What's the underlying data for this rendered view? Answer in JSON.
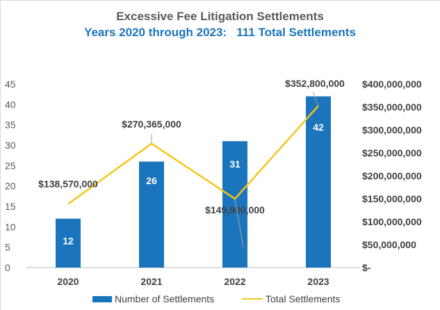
{
  "chart_data": {
    "type": "bar",
    "title": "Excessive Fee Litigation Settlements",
    "subtitle": "Years 2020 through 2023:   111 Total Settlements",
    "categories": [
      "2020",
      "2021",
      "2022",
      "2023"
    ],
    "series": [
      {
        "name": "Number of Settlements",
        "type": "bar",
        "axis": "left",
        "color": "#1b75bc",
        "values": [
          12,
          26,
          31,
          42
        ],
        "labels": [
          "12",
          "26",
          "31",
          "42"
        ]
      },
      {
        "name": "Total Settlements",
        "type": "line",
        "axis": "right",
        "color": "#f5c518",
        "values": [
          138570000,
          270365000,
          149900000,
          352800000
        ],
        "labels": [
          "$138,570,000",
          "$270,365,000",
          "$149,900,000",
          "$352,800,000"
        ]
      }
    ],
    "ylim": [
      0,
      45
    ],
    "yticks": [
      "0",
      "5",
      "10",
      "15",
      "20",
      "25",
      "30",
      "35",
      "40",
      "45"
    ],
    "y2lim": [
      0,
      400000000
    ],
    "y2ticks": [
      "$-",
      "$50,000,000",
      "$100,000,000",
      "$150,000,000",
      "$200,000,000",
      "$250,000,000",
      "$300,000,000",
      "$350,000,000",
      "$400,000,000"
    ],
    "xlabel": "",
    "ylabel": "",
    "grid": false,
    "legend": "bottom"
  }
}
